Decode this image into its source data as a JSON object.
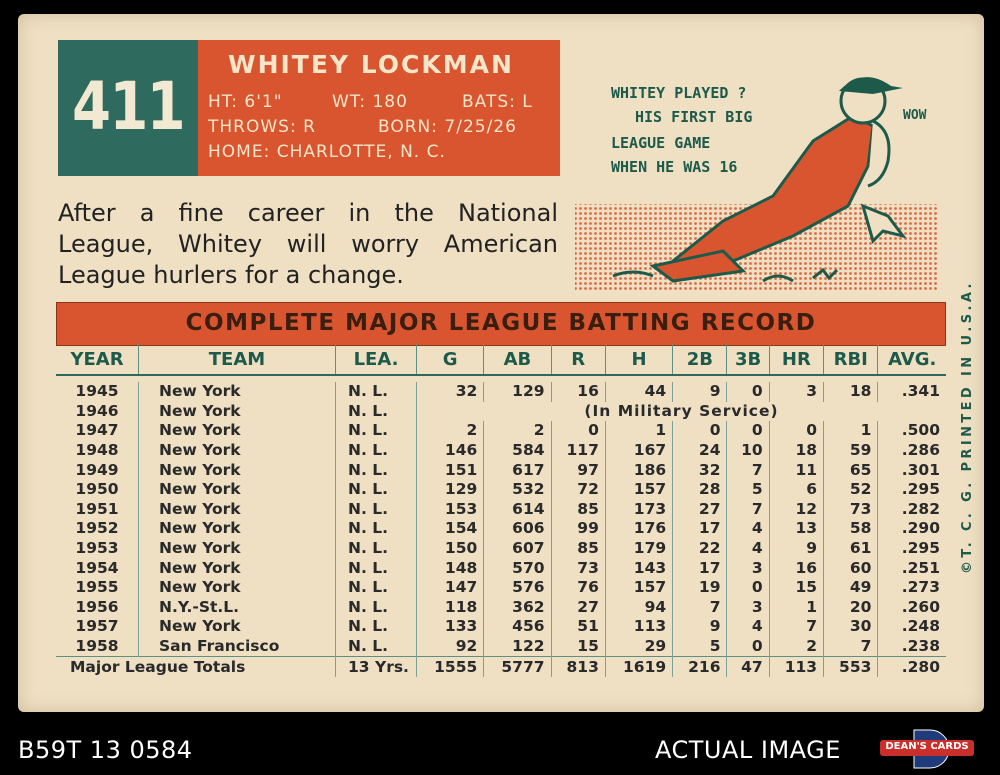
{
  "card": {
    "number": "411",
    "name": "WHITEY LOCKMAN",
    "ht": "HT: 6'1\"",
    "wt": "WT: 180",
    "bats": "BATS: L",
    "throws": "THROWS: R",
    "born": "BORN: 7/25/26",
    "home": "HOME: CHARLOTTE, N. C.",
    "bio": "After a fine career in the National League, Whitey will worry American League hurlers for a change.",
    "cartoon": {
      "line1": "WHITEY PLAYED ?",
      "line2": "HIS FIRST BIG",
      "line3": "LEAGUE GAME",
      "line4": "WHEN HE WAS 16",
      "exclaim": "WOW"
    },
    "side_text": "©T. C. G. PRINTED IN U.S.A.",
    "banner": "COMPLETE MAJOR LEAGUE BATTING RECORD"
  },
  "table": {
    "headers": {
      "year": "YEAR",
      "team": "TEAM",
      "lea": "LEA.",
      "g": "G",
      "ab": "AB",
      "r": "R",
      "h": "H",
      "b2": "2B",
      "b3": "3B",
      "hr": "HR",
      "rbi": "RBI",
      "avg": "AVG."
    },
    "rows": [
      {
        "year": "1945",
        "team": "New York",
        "lea": "N. L.",
        "g": "32",
        "ab": "129",
        "r": "16",
        "h": "44",
        "b2": "9",
        "b3": "0",
        "hr": "3",
        "rbi": "18",
        "avg": ".341"
      },
      {
        "year": "1946",
        "team": "New York",
        "lea": "N. L.",
        "note": "(In Military Service)"
      },
      {
        "year": "1947",
        "team": "New York",
        "lea": "N. L.",
        "g": "2",
        "ab": "2",
        "r": "0",
        "h": "1",
        "b2": "0",
        "b3": "0",
        "hr": "0",
        "rbi": "1",
        "avg": ".500"
      },
      {
        "year": "1948",
        "team": "New York",
        "lea": "N. L.",
        "g": "146",
        "ab": "584",
        "r": "117",
        "h": "167",
        "b2": "24",
        "b3": "10",
        "hr": "18",
        "rbi": "59",
        "avg": ".286"
      },
      {
        "year": "1949",
        "team": "New York",
        "lea": "N. L.",
        "g": "151",
        "ab": "617",
        "r": "97",
        "h": "186",
        "b2": "32",
        "b3": "7",
        "hr": "11",
        "rbi": "65",
        "avg": ".301"
      },
      {
        "year": "1950",
        "team": "New York",
        "lea": "N. L.",
        "g": "129",
        "ab": "532",
        "r": "72",
        "h": "157",
        "b2": "28",
        "b3": "5",
        "hr": "6",
        "rbi": "52",
        "avg": ".295"
      },
      {
        "year": "1951",
        "team": "New York",
        "lea": "N. L.",
        "g": "153",
        "ab": "614",
        "r": "85",
        "h": "173",
        "b2": "27",
        "b3": "7",
        "hr": "12",
        "rbi": "73",
        "avg": ".282"
      },
      {
        "year": "1952",
        "team": "New York",
        "lea": "N. L.",
        "g": "154",
        "ab": "606",
        "r": "99",
        "h": "176",
        "b2": "17",
        "b3": "4",
        "hr": "13",
        "rbi": "58",
        "avg": ".290"
      },
      {
        "year": "1953",
        "team": "New York",
        "lea": "N. L.",
        "g": "150",
        "ab": "607",
        "r": "85",
        "h": "179",
        "b2": "22",
        "b3": "4",
        "hr": "9",
        "rbi": "61",
        "avg": ".295"
      },
      {
        "year": "1954",
        "team": "New York",
        "lea": "N. L.",
        "g": "148",
        "ab": "570",
        "r": "73",
        "h": "143",
        "b2": "17",
        "b3": "3",
        "hr": "16",
        "rbi": "60",
        "avg": ".251"
      },
      {
        "year": "1955",
        "team": "New York",
        "lea": "N. L.",
        "g": "147",
        "ab": "576",
        "r": "76",
        "h": "157",
        "b2": "19",
        "b3": "0",
        "hr": "15",
        "rbi": "49",
        "avg": ".273"
      },
      {
        "year": "1956",
        "team": "N.Y.-St.L.",
        "lea": "N. L.",
        "g": "118",
        "ab": "362",
        "r": "27",
        "h": "94",
        "b2": "7",
        "b3": "3",
        "hr": "1",
        "rbi": "20",
        "avg": ".260"
      },
      {
        "year": "1957",
        "team": "New York",
        "lea": "N. L.",
        "g": "133",
        "ab": "456",
        "r": "51",
        "h": "113",
        "b2": "9",
        "b3": "4",
        "hr": "7",
        "rbi": "30",
        "avg": ".248"
      },
      {
        "year": "1958",
        "team": "San Francisco",
        "lea": "N. L.",
        "g": "92",
        "ab": "122",
        "r": "15",
        "h": "29",
        "b2": "5",
        "b3": "0",
        "hr": "2",
        "rbi": "7",
        "avg": ".238"
      }
    ],
    "totals": {
      "label": "Major League Totals",
      "years": "13 Yrs.",
      "g": "1555",
      "ab": "5777",
      "r": "813",
      "h": "1619",
      "b2": "216",
      "b3": "47",
      "hr": "113",
      "rbi": "553",
      "avg": ".280"
    }
  },
  "footer": {
    "left": "B59T 13 0584",
    "right": "ACTUAL IMAGE",
    "logo": "DEAN'S CARDS"
  },
  "colors": {
    "card_bg": "#efe0c4",
    "teal": "#2e6a5e",
    "orange": "#d9552f"
  }
}
